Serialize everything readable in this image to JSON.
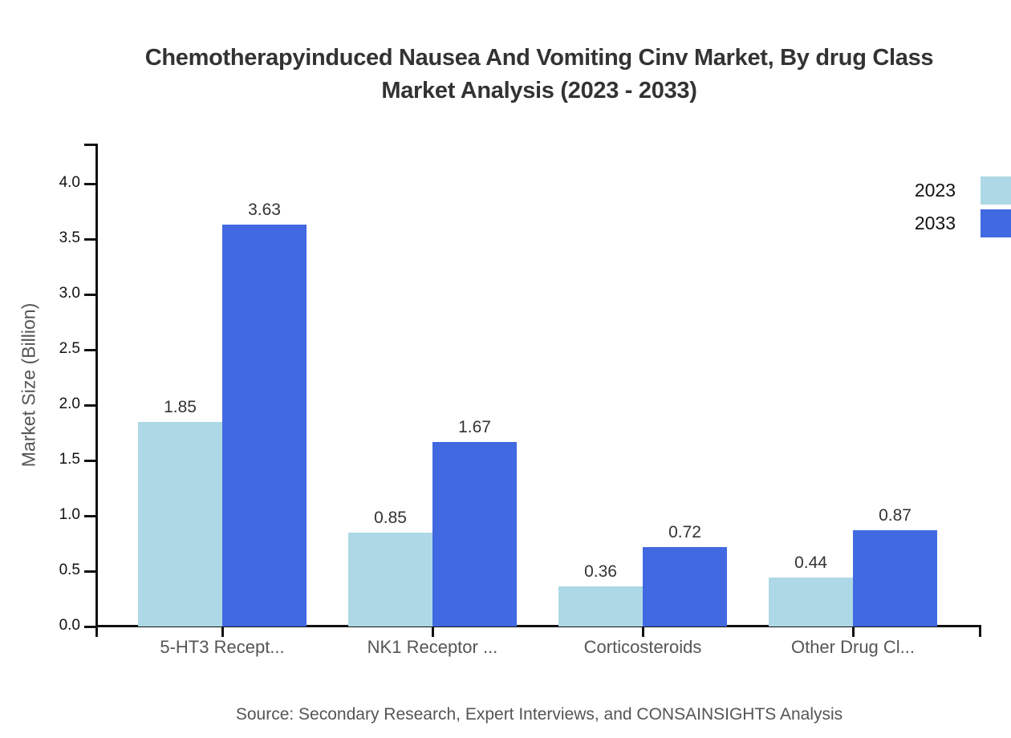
{
  "title": {
    "line1": "Chemotherapyinduced Nausea And Vomiting Cinv Market, By drug Class",
    "line2": "Market Analysis (2023 - 2033)"
  },
  "source": "Source: Secondary Research, Expert Interviews, and CONSAINSIGHTS Analysis",
  "chart_data": {
    "type": "bar",
    "title": "Chemotherapyinduced Nausea And Vomiting Cinv Market, By drug Class Market Analysis (2023 - 2033)",
    "categories": [
      "5-HT3 Recept...",
      "NK1 Receptor ...",
      "Corticosteroids",
      "Other Drug Cl..."
    ],
    "series": [
      {
        "name": "2023",
        "color": "#ADD8E6",
        "values": [
          1.85,
          0.85,
          0.36,
          0.44
        ]
      },
      {
        "name": "2033",
        "color": "#4169E1",
        "values": [
          3.63,
          1.67,
          0.72,
          0.87
        ]
      }
    ],
    "xlabel": "",
    "ylabel": "Market Size (Billion)",
    "ylim": [
      0.0,
      4.0
    ],
    "yticks": [
      0.0,
      0.5,
      1.0,
      1.5,
      2.0,
      2.5,
      3.0,
      3.5,
      4.0
    ],
    "grid": false,
    "value_labels": true,
    "legend_position": "top-right"
  },
  "colors": {
    "axis": "#111111",
    "title_text": "#333333",
    "tick_text": "#111111",
    "category_text": "#555555",
    "value_label_text": "#333333",
    "caption_text": "#555555",
    "background": "#ffffff",
    "series_2023": "#ADD8E6",
    "series_2033": "#4169E1"
  }
}
